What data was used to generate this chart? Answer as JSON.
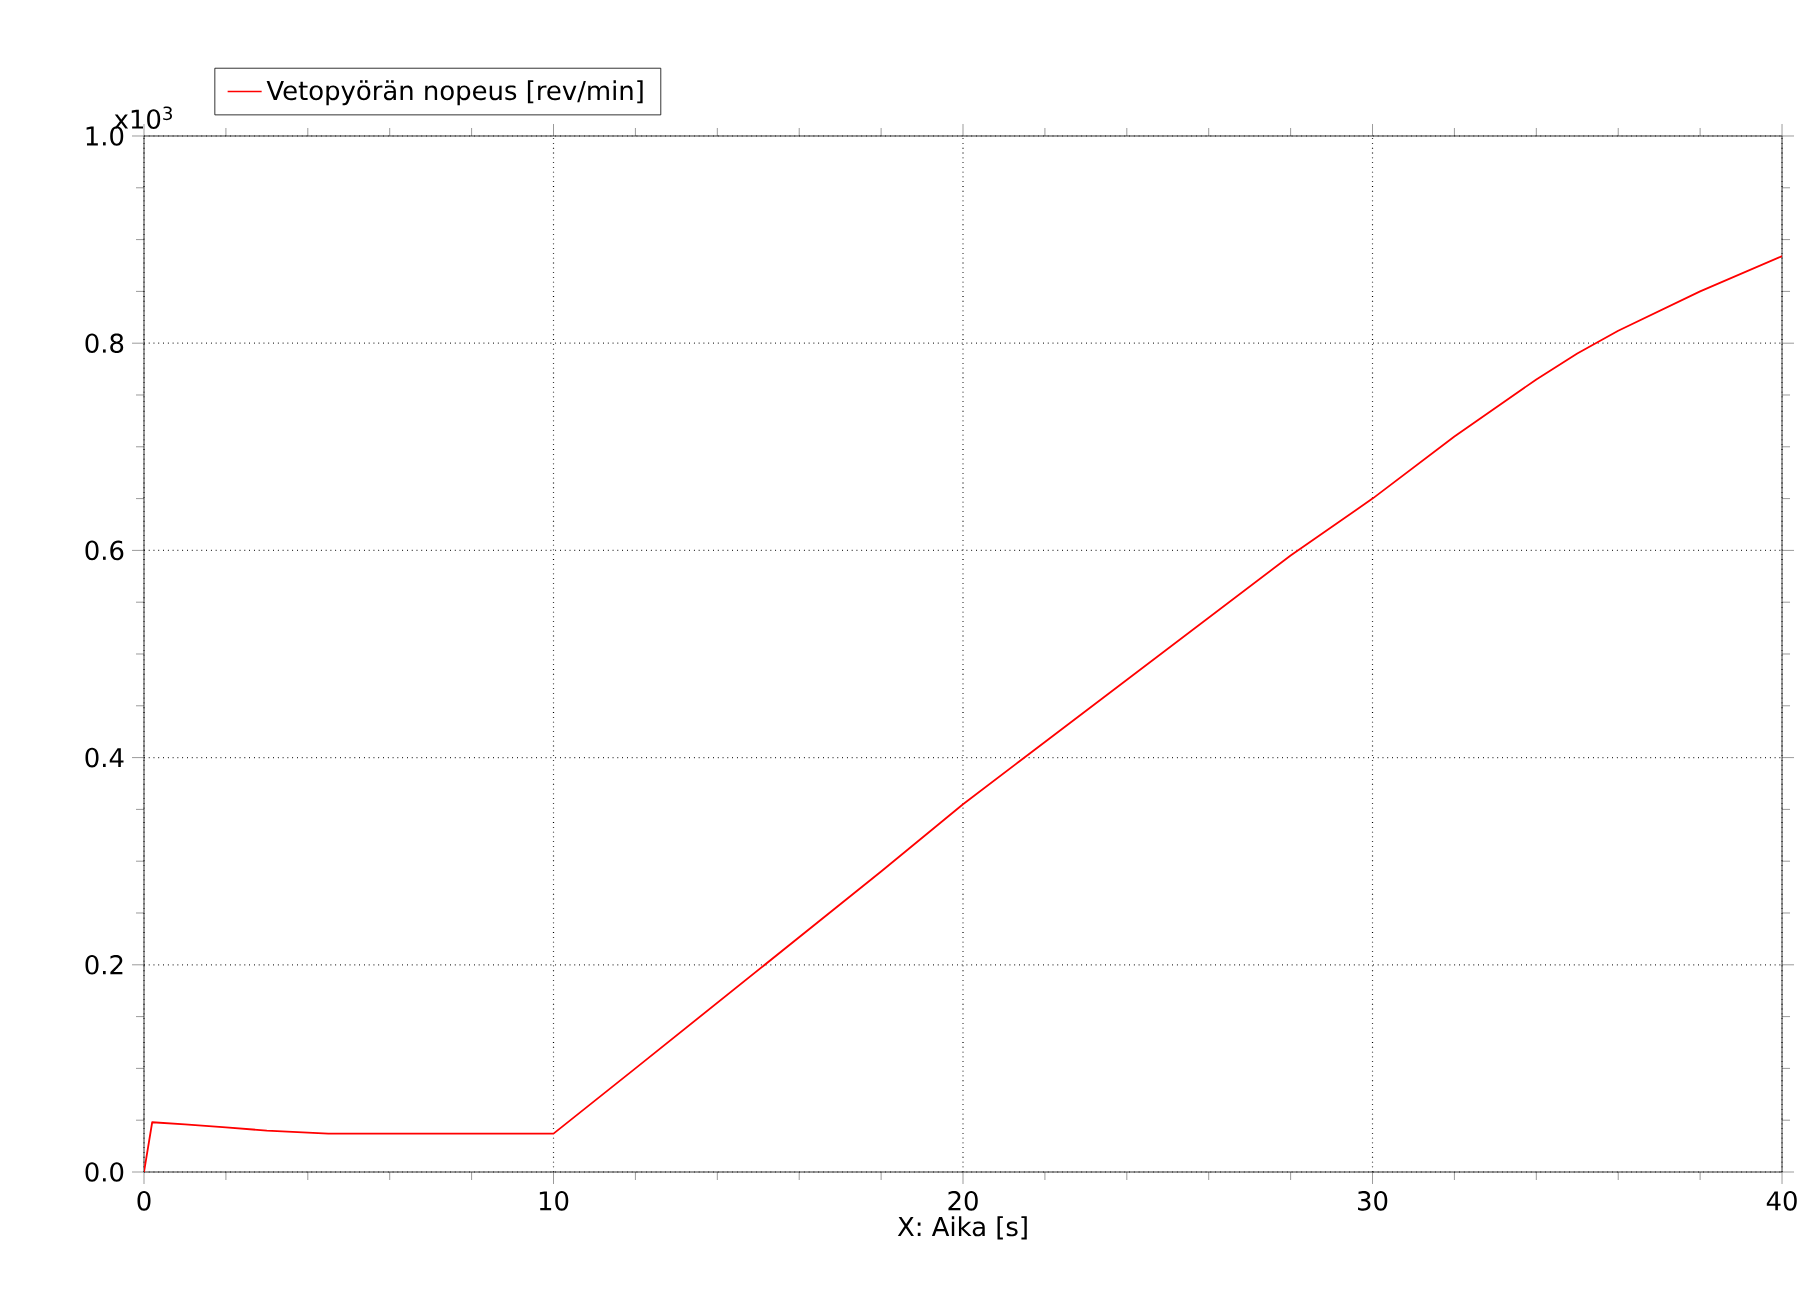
{
  "chart_data": {
    "type": "line",
    "xlabel": "X: Aika [s]",
    "ylabel": "x10$^{3}$",
    "xlim": [
      0,
      40
    ],
    "ylim": [
      0,
      1.0
    ],
    "xticks": [
      0,
      10,
      20,
      30,
      40
    ],
    "yticks": [
      {
        "value": 0,
        "label": "0.0"
      },
      {
        "value": 0.2,
        "label": "0.2"
      },
      {
        "value": 0.4,
        "label": "0.4"
      },
      {
        "value": 0.6,
        "label": "0.6"
      },
      {
        "value": 0.8,
        "label": "0.8"
      },
      {
        "value": 1.0,
        "label": "1.0"
      }
    ],
    "grid": true,
    "legend": "top left",
    "marker": "none",
    "line_style": "solid",
    "series": [
      {
        "name": "Vetopyörän nopeus [rev/min]",
        "color": "#ff0000",
        "x": [
          0,
          0.2,
          1,
          2,
          3,
          4.5,
          6,
          8,
          10,
          12,
          15,
          18,
          20,
          22,
          25,
          28,
          30,
          32,
          34,
          35,
          36,
          38,
          40
        ],
        "values": [
          0,
          0.048,
          0.046,
          0.043,
          0.04,
          0.037,
          0.037,
          0.037,
          0.037,
          0.1,
          0.195,
          0.29,
          0.355,
          0.415,
          0.505,
          0.595,
          0.65,
          0.71,
          0.765,
          0.79,
          0.812,
          0.85,
          0.884
        ]
      }
    ]
  }
}
